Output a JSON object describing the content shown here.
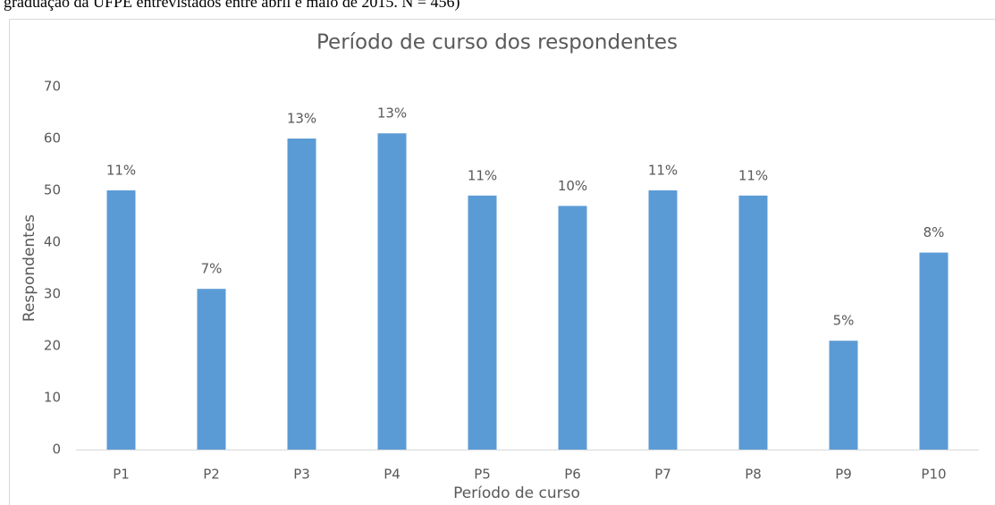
{
  "caption": "graduação da UFPE entrevistados entre abril e maio de 2015. N = 456)",
  "chart_data": {
    "type": "bar",
    "title": "Período de curso dos respondentes",
    "x_label": "Período de curso",
    "y_label": "Respondentes",
    "categories": [
      "P1",
      "P2",
      "P3",
      "P4",
      "P5",
      "P6",
      "P7",
      "P8",
      "P9",
      "P10"
    ],
    "values": [
      50,
      31,
      60,
      61,
      49,
      47,
      50,
      49,
      21,
      38
    ],
    "data_labels": [
      "11%",
      "7%",
      "13%",
      "13%",
      "11%",
      "10%",
      "11%",
      "11%",
      "5%",
      "8%"
    ],
    "color": "#5b9bd5",
    "ylim": [
      0,
      70
    ],
    "yticks": [
      0,
      10,
      20,
      30,
      40,
      50,
      60,
      70
    ],
    "grid": false
  }
}
